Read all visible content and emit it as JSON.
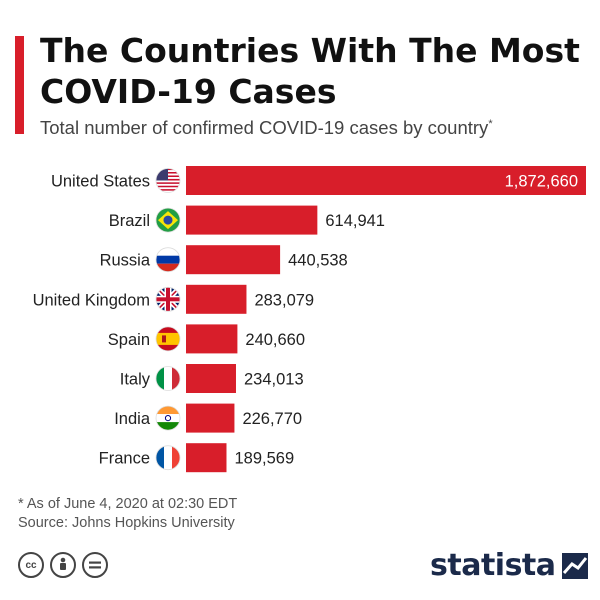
{
  "header": {
    "title": "The Countries With The Most COVID-19 Cases",
    "subtitle": "Total number of confirmed COVID-19 cases by country",
    "subtitle_marker": "*"
  },
  "chart_data": {
    "type": "bar",
    "orientation": "horizontal",
    "title": "The Countries With The Most COVID-19 Cases",
    "subtitle": "Total number of confirmed COVID-19 cases by country",
    "categories": [
      "United States",
      "Brazil",
      "Russia",
      "United Kingdom",
      "Spain",
      "Italy",
      "India",
      "France"
    ],
    "values": [
      1872660,
      614941,
      440538,
      283079,
      240660,
      234013,
      226770,
      189569
    ],
    "value_labels": [
      "1,872,660",
      "614,941",
      "440,538",
      "283,079",
      "240,660",
      "234,013",
      "226,770",
      "189,569"
    ],
    "flag_icons": [
      "us-flag-icon",
      "brazil-flag-icon",
      "russia-flag-icon",
      "uk-flag-icon",
      "spain-flag-icon",
      "italy-flag-icon",
      "india-flag-icon",
      "france-flag-icon"
    ],
    "bar_color": "#d81e2a",
    "xlim": [
      0,
      1872660
    ],
    "grid": false,
    "legend": "none"
  },
  "footer": {
    "footnote": "* As of June 4, 2020 at 02:30 EDT",
    "source": "Source: Johns Hopkins University",
    "brand": "statista",
    "license_icons": [
      "creative-commons-icon",
      "attribution-icon",
      "no-derivatives-icon"
    ]
  },
  "colors": {
    "accent": "#d81e2a",
    "brand": "#1b2a4a"
  }
}
